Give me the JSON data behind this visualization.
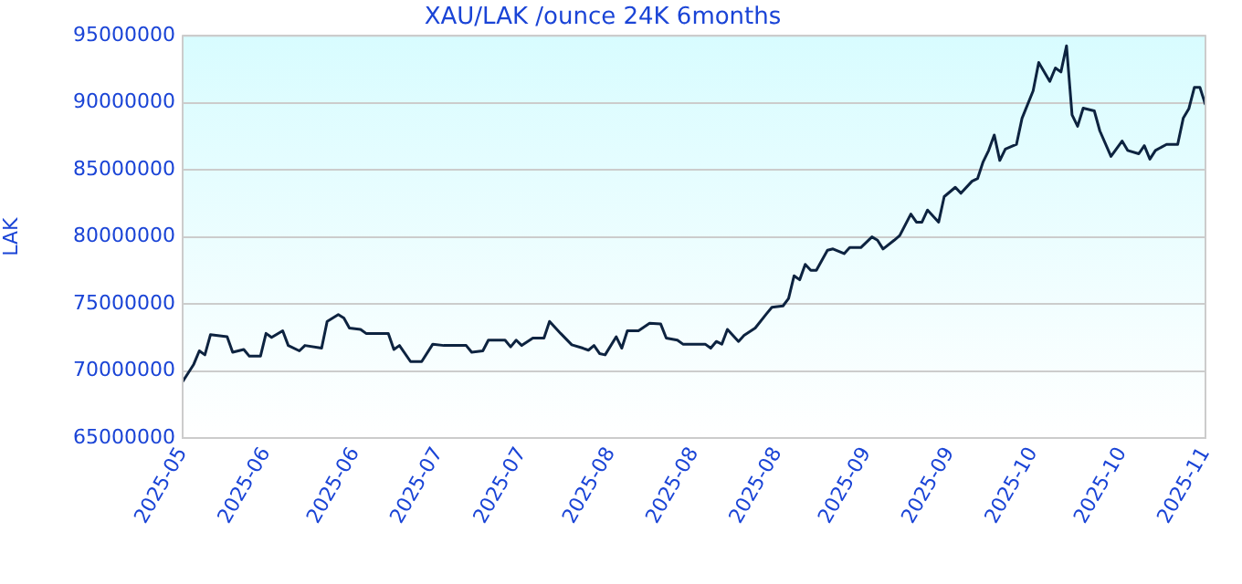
{
  "chart_data": {
    "type": "line",
    "title": "XAU/LAK /ounce 24K 6months",
    "ylabel": "LAK",
    "x": [
      "2025-05-04",
      "2025-05-06",
      "2025-05-07",
      "2025-05-08",
      "2025-05-09",
      "2025-05-12",
      "2025-05-13",
      "2025-05-15",
      "2025-05-16",
      "2025-05-18",
      "2025-05-19",
      "2025-05-20",
      "2025-05-22",
      "2025-05-23",
      "2025-05-25",
      "2025-05-26",
      "2025-05-29",
      "2025-05-30",
      "2025-06-01",
      "2025-06-02",
      "2025-06-03",
      "2025-06-05",
      "2025-06-06",
      "2025-06-10",
      "2025-06-11",
      "2025-06-12",
      "2025-06-14",
      "2025-06-16",
      "2025-06-18",
      "2025-06-20",
      "2025-06-24",
      "2025-06-25",
      "2025-06-27",
      "2025-06-28",
      "2025-07-01",
      "2025-07-02",
      "2025-07-03",
      "2025-07-04",
      "2025-07-06",
      "2025-07-08",
      "2025-07-09",
      "2025-07-11",
      "2025-07-13",
      "2025-07-15",
      "2025-07-16",
      "2025-07-17",
      "2025-07-18",
      "2025-07-19",
      "2025-07-21",
      "2025-07-22",
      "2025-07-23",
      "2025-07-25",
      "2025-07-27",
      "2025-07-29",
      "2025-07-30",
      "2025-08-01",
      "2025-08-02",
      "2025-08-06",
      "2025-08-07",
      "2025-08-08",
      "2025-08-09",
      "2025-08-10",
      "2025-08-12",
      "2025-08-13",
      "2025-08-15",
      "2025-08-17",
      "2025-08-18",
      "2025-08-20",
      "2025-08-21",
      "2025-08-22",
      "2025-08-23",
      "2025-08-24",
      "2025-08-25",
      "2025-08-26",
      "2025-08-28",
      "2025-08-29",
      "2025-08-31",
      "2025-09-01",
      "2025-09-03",
      "2025-09-05",
      "2025-09-06",
      "2025-09-07",
      "2025-09-09",
      "2025-09-10",
      "2025-09-12",
      "2025-09-13",
      "2025-09-14",
      "2025-09-15",
      "2025-09-17",
      "2025-09-18",
      "2025-09-20",
      "2025-09-21",
      "2025-09-23",
      "2025-09-24",
      "2025-09-25",
      "2025-09-26",
      "2025-09-27",
      "2025-09-28",
      "2025-09-29",
      "2025-10-01",
      "2025-10-02",
      "2025-10-04",
      "2025-10-05",
      "2025-10-07",
      "2025-10-08",
      "2025-10-09",
      "2025-10-10",
      "2025-10-11",
      "2025-10-12",
      "2025-10-13",
      "2025-10-15",
      "2025-10-16",
      "2025-10-18",
      "2025-10-20",
      "2025-10-21",
      "2025-10-23",
      "2025-10-24",
      "2025-10-25",
      "2025-10-26",
      "2025-10-28",
      "2025-10-30",
      "2025-10-31",
      "2025-11-01",
      "2025-11-02",
      "2025-11-03",
      "2025-11-04"
    ],
    "series": [
      {
        "color": "#0d2340",
        "values": [
          69200000,
          70500000,
          71500000,
          71200000,
          72700000,
          72550000,
          71400000,
          71600000,
          71100000,
          71100000,
          72800000,
          72500000,
          73000000,
          71900000,
          71500000,
          71900000,
          71700000,
          73700000,
          74200000,
          73950000,
          73200000,
          73100000,
          72800000,
          72800000,
          71600000,
          71900000,
          70700000,
          70700000,
          72000000,
          71900000,
          71900000,
          71400000,
          71500000,
          72300000,
          72300000,
          71800000,
          72300000,
          71900000,
          72450000,
          72450000,
          73700000,
          72800000,
          71950000,
          71700000,
          71550000,
          71900000,
          71300000,
          71200000,
          72550000,
          71700000,
          73000000,
          73000000,
          73550000,
          73500000,
          72450000,
          72300000,
          72000000,
          72000000,
          71700000,
          72200000,
          72000000,
          73100000,
          72200000,
          72650000,
          73200000,
          74250000,
          74750000,
          74850000,
          75400000,
          77100000,
          76800000,
          77950000,
          77500000,
          77500000,
          79000000,
          79100000,
          78750000,
          79200000,
          79200000,
          80000000,
          79750000,
          79100000,
          79750000,
          80100000,
          81700000,
          81100000,
          81100000,
          82000000,
          81100000,
          83000000,
          83700000,
          83250000,
          84150000,
          84350000,
          85600000,
          86450000,
          87600000,
          85700000,
          86550000,
          86900000,
          88850000,
          90900000,
          93000000,
          91600000,
          92600000,
          92300000,
          94250000,
          89100000,
          88250000,
          89600000,
          89400000,
          87900000,
          86000000,
          87150000,
          86450000,
          86200000,
          86800000,
          85800000,
          86450000,
          86900000,
          86900000,
          88850000,
          89550000,
          91150000,
          91150000,
          89850000
        ]
      }
    ],
    "xlim": [
      "2025-05-04",
      "2025-11-04"
    ],
    "xticks": [
      {
        "value": "2025-05-04",
        "label": "2025-05"
      },
      {
        "value": "2025-05-19",
        "label": "2025-06"
      },
      {
        "value": "2025-06-04",
        "label": "2025-06"
      },
      {
        "value": "2025-06-19",
        "label": "2025-07"
      },
      {
        "value": "2025-07-04",
        "label": "2025-07"
      },
      {
        "value": "2025-07-20",
        "label": "2025-08"
      },
      {
        "value": "2025-08-04",
        "label": "2025-08"
      },
      {
        "value": "2025-08-19",
        "label": "2025-08"
      },
      {
        "value": "2025-09-04",
        "label": "2025-09"
      },
      {
        "value": "2025-09-19",
        "label": "2025-09"
      },
      {
        "value": "2025-10-04",
        "label": "2025-10"
      },
      {
        "value": "2025-10-20",
        "label": "2025-10"
      },
      {
        "value": "2025-11-04",
        "label": "2025-11"
      }
    ],
    "ylim": [
      65000000,
      95000000
    ],
    "yticks": [
      65000000,
      70000000,
      75000000,
      80000000,
      85000000,
      90000000,
      95000000
    ],
    "grid": "y",
    "legend": false
  }
}
